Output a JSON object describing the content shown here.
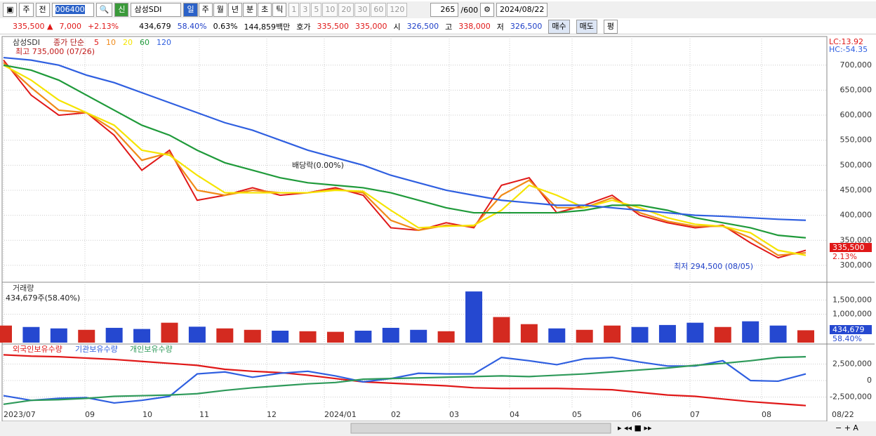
{
  "toolbar": {
    "market": "주",
    "prev": "전",
    "code": "006400",
    "badge": "신",
    "name": "삼성SDI",
    "periods": [
      "일",
      "주",
      "월",
      "년",
      "분",
      "초",
      "틱"
    ],
    "intervals": [
      "1",
      "3",
      "5",
      "10",
      "20",
      "30",
      "60",
      "120"
    ],
    "count": "265",
    "max": "/600",
    "date": "2024/08/22"
  },
  "quote": {
    "price": "335,500 ▲",
    "change": "7,000",
    "rate": "+2.13%",
    "volume": "434,679",
    "vol_rate": "58.40%",
    "turnover": "0.63%",
    "amount": "144,859백만",
    "ask_label": "호가",
    "ask": "335,500",
    "bid": "335,000",
    "open_label": "시",
    "open": "326,500",
    "high_label": "고",
    "high": "338,000",
    "low_label": "저",
    "low": "326,500",
    "buttons": [
      "매수",
      "매도",
      "평"
    ]
  },
  "chart_data": [
    {
      "type": "line",
      "title": "삼성SDI",
      "subtitle": "종가 단순",
      "series": [
        {
          "name": "5",
          "color": "#e01818",
          "values": [
            710000,
            640000,
            600000,
            605000,
            560000,
            490000,
            530000,
            430000,
            440000,
            455000,
            440000,
            445000,
            455000,
            440000,
            375000,
            370000,
            385000,
            375000,
            460000,
            475000,
            405000,
            420000,
            440000,
            400000,
            385000,
            375000,
            380000,
            345000,
            315000,
            330000
          ]
        },
        {
          "name": "10",
          "color": "#f08a18",
          "values": [
            705000,
            655000,
            610000,
            605000,
            570000,
            510000,
            525000,
            450000,
            440000,
            450000,
            445000,
            445000,
            452000,
            445000,
            390000,
            370000,
            380000,
            378000,
            440000,
            470000,
            415000,
            415000,
            435000,
            405000,
            388000,
            378000,
            378000,
            355000,
            320000,
            325000
          ]
        },
        {
          "name": "20",
          "color": "#f5e400",
          "values": [
            700000,
            670000,
            630000,
            605000,
            580000,
            530000,
            520000,
            480000,
            445000,
            445000,
            445000,
            445000,
            450000,
            448000,
            410000,
            375000,
            378000,
            380000,
            410000,
            460000,
            440000,
            415000,
            430000,
            415000,
            395000,
            382000,
            378000,
            365000,
            330000,
            320000
          ]
        },
        {
          "name": "60",
          "color": "#1f9a3a",
          "values": [
            700000,
            690000,
            670000,
            640000,
            610000,
            580000,
            560000,
            530000,
            505000,
            490000,
            475000,
            465000,
            460000,
            455000,
            445000,
            430000,
            415000,
            405000,
            405000,
            405000,
            405000,
            410000,
            420000,
            420000,
            410000,
            395000,
            385000,
            375000,
            360000,
            355000
          ]
        },
        {
          "name": "120",
          "color": "#2f5fe0",
          "values": [
            715000,
            710000,
            700000,
            680000,
            665000,
            645000,
            625000,
            605000,
            585000,
            570000,
            550000,
            530000,
            515000,
            500000,
            480000,
            465000,
            450000,
            440000,
            430000,
            425000,
            420000,
            420000,
            415000,
            410000,
            405000,
            400000,
            398000,
            395000,
            392000,
            390000
          ]
        }
      ],
      "ylim": [
        269000,
        753000
      ],
      "yticks": [
        {
          "value": 300000,
          "label": "300,000"
        },
        {
          "value": 350000,
          "label": "350,000"
        },
        {
          "value": 400000,
          "label": "400,000"
        },
        {
          "value": 450000,
          "label": "450,000"
        },
        {
          "value": 500000,
          "label": "500,000"
        },
        {
          "value": 550000,
          "label": "550,000"
        },
        {
          "value": 600000,
          "label": "600,000"
        },
        {
          "value": 650000,
          "label": "650,000"
        },
        {
          "value": 700000,
          "label": "700,000"
        }
      ],
      "grid": true,
      "annotations": [
        "최고 735,000 (07/26)",
        "배당락(0.00%)",
        "최저 294,500 (08/05)",
        "LC:13.92",
        "HC:-54.35"
      ],
      "last_label": "335,500",
      "last_rate": "2.13%"
    },
    {
      "type": "bar",
      "title": "거래량",
      "subtitle": "434,679주(58.40%)",
      "values": [
        600000,
        550000,
        500000,
        450000,
        520000,
        480000,
        700000,
        560000,
        500000,
        450000,
        420000,
        400000,
        380000,
        420000,
        520000,
        450000,
        400000,
        1800000,
        900000,
        650000,
        500000,
        450000,
        600000,
        550000,
        620000,
        700000,
        550000,
        750000,
        600000,
        434679
      ],
      "up_color": "#d42a20",
      "down_color": "#2548d0",
      "ylim": [
        0,
        2050000
      ],
      "yticks": [
        {
          "value": 1000000,
          "label": "1,000,000"
        },
        {
          "value": 1500000,
          "label": "1,500,000"
        }
      ],
      "grid": true,
      "last_label": "434,679",
      "last_rate": "58.40%"
    },
    {
      "type": "line",
      "series": [
        {
          "name": "외국인보유수량",
          "color": "#e01818",
          "values": [
            3900000,
            3700000,
            3600000,
            3400000,
            3200000,
            2900000,
            2600000,
            2300000,
            1700000,
            1400000,
            1200000,
            800000,
            300000,
            -200000,
            -400000,
            -600000,
            -800000,
            -1100000,
            -1200000,
            -1200000,
            -1200000,
            -1300000,
            -1400000,
            -1800000,
            -2200000,
            -2400000,
            -2800000,
            -3200000,
            -3500000,
            -3800000
          ]
        },
        {
          "name": "기관보유수량",
          "color": "#2f5fe0",
          "values": [
            -2300000,
            -3000000,
            -2700000,
            -2600000,
            -3400000,
            -3000000,
            -2400000,
            1000000,
            1300000,
            500000,
            1100000,
            1400000,
            700000,
            -200000,
            300000,
            1100000,
            1000000,
            1000000,
            3500000,
            3000000,
            2400000,
            3300000,
            3500000,
            2800000,
            2200000,
            2200000,
            3000000,
            0,
            -100000,
            1000000
          ]
        },
        {
          "name": "개인보유수량",
          "color": "#2e9a5a",
          "values": [
            -3600000,
            -3000000,
            -2900000,
            -2700000,
            -2400000,
            -2300000,
            -2200000,
            -2000000,
            -1500000,
            -1100000,
            -800000,
            -500000,
            -300000,
            200000,
            300000,
            400000,
            500000,
            600000,
            700000,
            600000,
            800000,
            1000000,
            1300000,
            1600000,
            1900000,
            2300000,
            2600000,
            3000000,
            3500000,
            3600000
          ]
        }
      ],
      "ylim": [
        -4260000,
        5320000
      ],
      "yticks": [
        {
          "value": -2500000,
          "label": "-2,500,000"
        },
        0,
        {
          "value": 2500000,
          "label": "2,500,000"
        }
      ],
      "grid": true,
      "x_labels": [
        "2023/07",
        "09",
        "10",
        "11",
        "12",
        "2024/01",
        "02",
        "03",
        "04",
        "05",
        "06",
        "07",
        "08",
        "08/22"
      ]
    }
  ]
}
